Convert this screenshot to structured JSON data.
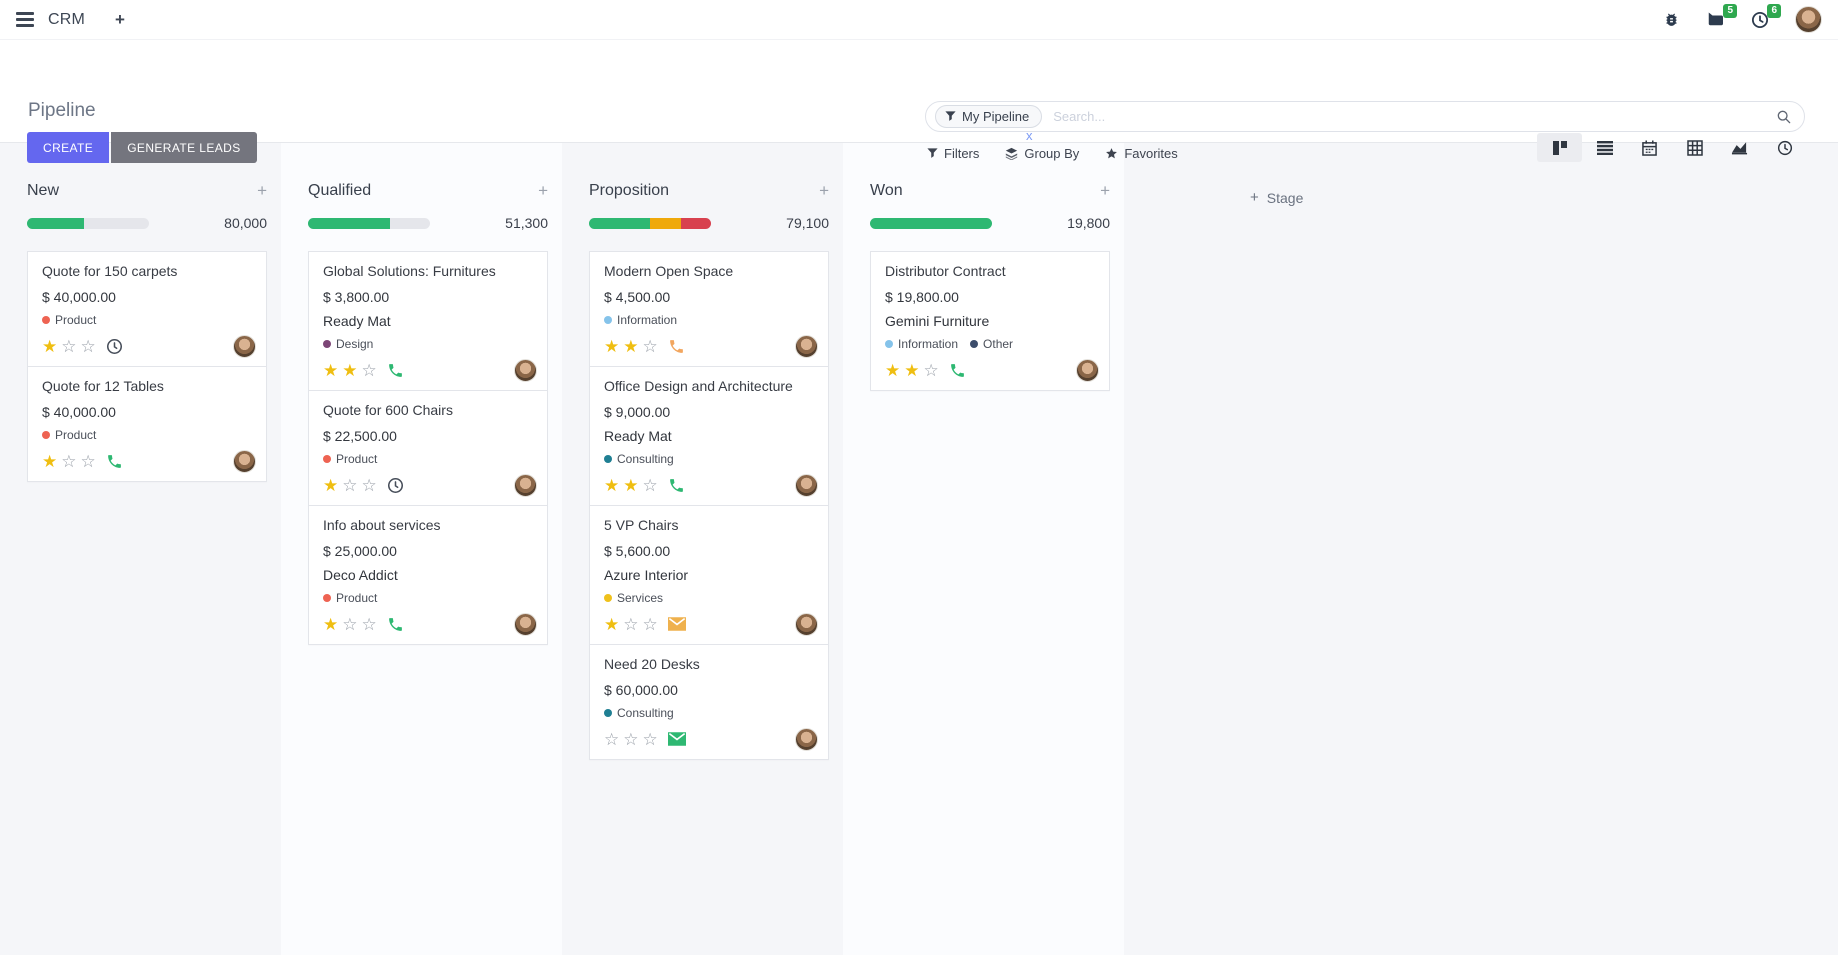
{
  "topbar": {
    "app_name": "CRM",
    "add_label": "+",
    "messages_badge": "5",
    "activities_badge": "6"
  },
  "page": {
    "title": "Pipeline"
  },
  "actions": {
    "create": "CREATE",
    "generate_leads": "GENERATE LEADS"
  },
  "search": {
    "facet": "My Pipeline",
    "facet_remove": "x",
    "placeholder": "Search...",
    "filters": "Filters",
    "group_by": "Group By",
    "favorites": "Favorites"
  },
  "view_switcher": [
    "kanban",
    "list",
    "calendar",
    "pivot",
    "graph",
    "activity"
  ],
  "stage_add": {
    "plus": "+",
    "label": "Stage"
  },
  "colors": {
    "accent": "#6467ef",
    "button_gray": "#74757e",
    "progress_green": "#2eb872",
    "progress_orange": "#efa90b",
    "progress_red": "#d8414f",
    "star_gold": "#efbe11",
    "badge_green": "#2fa84f"
  },
  "columns": [
    {
      "name": "New",
      "total": "80,000",
      "add": "+",
      "progress": [
        {
          "color": "#2eb872",
          "pct": 47
        }
      ],
      "cards": [
        {
          "title": "Quote for 150 carpets",
          "amount": "$ 40,000.00",
          "partner": "",
          "tags": [
            {
              "label": "Product",
              "color": "#ee6352"
            }
          ],
          "stars": 1,
          "activity": {
            "icon": "clock-icon",
            "color": "#474e5a"
          }
        },
        {
          "title": "Quote for 12 Tables",
          "amount": "$ 40,000.00",
          "partner": "",
          "tags": [
            {
              "label": "Product",
              "color": "#ee6352"
            }
          ],
          "stars": 1,
          "activity": {
            "icon": "phone-icon",
            "color": "#2eb872"
          }
        }
      ]
    },
    {
      "name": "Qualified",
      "total": "51,300",
      "add": "+",
      "progress": [
        {
          "color": "#2eb872",
          "pct": 67
        }
      ],
      "cards": [
        {
          "title": "Global Solutions: Furnitures",
          "amount": "$ 3,800.00",
          "partner": "Ready Mat",
          "tags": [
            {
              "label": "Design",
              "color": "#7c4576"
            }
          ],
          "stars": 2,
          "activity": {
            "icon": "phone-icon",
            "color": "#2eb872"
          }
        },
        {
          "title": "Quote for 600 Chairs",
          "amount": "$ 22,500.00",
          "partner": "",
          "tags": [
            {
              "label": "Product",
              "color": "#ee6352"
            }
          ],
          "stars": 1,
          "activity": {
            "icon": "clock-icon",
            "color": "#474e5a"
          }
        },
        {
          "title": "Info about services",
          "amount": "$ 25,000.00",
          "partner": "Deco Addict",
          "tags": [
            {
              "label": "Product",
              "color": "#ee6352"
            }
          ],
          "stars": 1,
          "activity": {
            "icon": "phone-icon",
            "color": "#2eb872"
          }
        }
      ]
    },
    {
      "name": "Proposition",
      "total": "79,100",
      "add": "+",
      "progress": [
        {
          "color": "#2eb872",
          "pct": 50
        },
        {
          "color": "#efa90b",
          "pct": 25
        },
        {
          "color": "#d8414f",
          "pct": 25
        }
      ],
      "cards": [
        {
          "title": "Modern Open Space",
          "amount": "$ 4,500.00",
          "partner": "",
          "tags": [
            {
              "label": "Information",
              "color": "#85c3ea"
            }
          ],
          "stars": 2,
          "activity": {
            "icon": "phone-icon",
            "color": "#f2a65f"
          }
        },
        {
          "title": "Office Design and Architecture",
          "amount": "$ 9,000.00",
          "partner": "Ready Mat",
          "tags": [
            {
              "label": "Consulting",
              "color": "#1f7f93"
            }
          ],
          "stars": 2,
          "activity": {
            "icon": "phone-icon",
            "color": "#2eb872"
          }
        },
        {
          "title": "5 VP Chairs",
          "amount": "$ 5,600.00",
          "partner": "Azure Interior",
          "tags": [
            {
              "label": "Services",
              "color": "#efc11b"
            }
          ],
          "stars": 1,
          "activity": {
            "icon": "mail-icon",
            "color": "#efb14d"
          }
        },
        {
          "title": "Need 20 Desks",
          "amount": "$ 60,000.00",
          "partner": "",
          "tags": [
            {
              "label": "Consulting",
              "color": "#1f7f93"
            }
          ],
          "stars": 0,
          "activity": {
            "icon": "mail-icon",
            "color": "#2eb872"
          }
        }
      ]
    },
    {
      "name": "Won",
      "total": "19,800",
      "add": "+",
      "progress": [
        {
          "color": "#2eb872",
          "pct": 100
        }
      ],
      "cards": [
        {
          "title": "Distributor Contract",
          "amount": "$ 19,800.00",
          "partner": "Gemini Furniture",
          "tags": [
            {
              "label": "Information",
              "color": "#85c3ea"
            },
            {
              "label": "Other",
              "color": "#3c4d6b"
            }
          ],
          "stars": 2,
          "activity": {
            "icon": "phone-icon",
            "color": "#2eb872"
          }
        }
      ]
    }
  ]
}
